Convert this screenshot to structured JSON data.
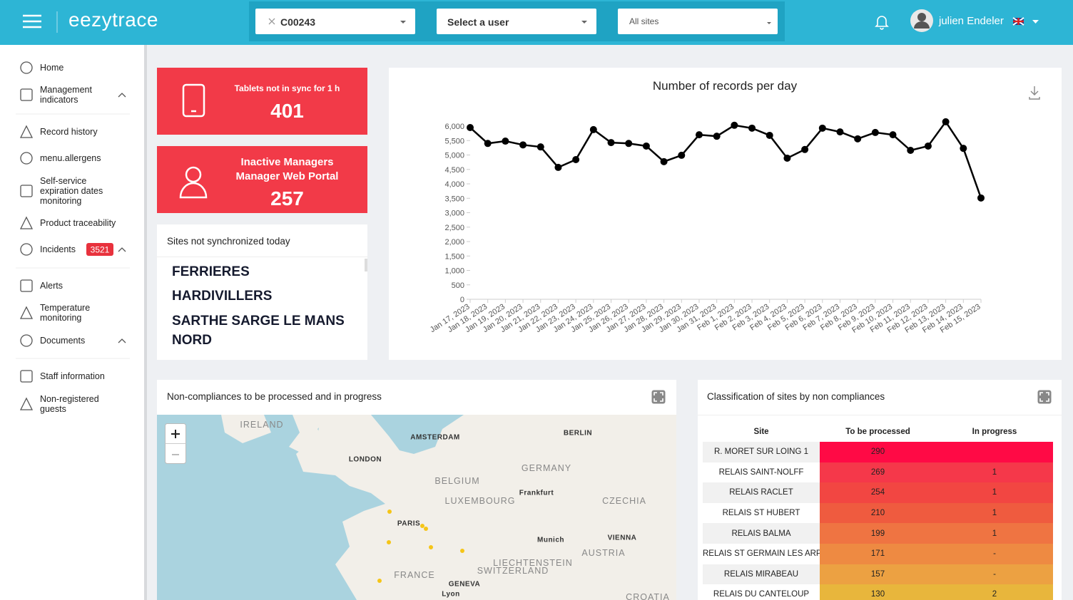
{
  "header": {
    "brand": "eezytrace",
    "company_select": "C00243",
    "user_select": "Select a user",
    "site_select": "All sites",
    "user_name": "julien Endeler"
  },
  "sidebar": {
    "items": [
      {
        "label": "Home"
      },
      {
        "label": "Management indicators"
      },
      {
        "label": "Record history"
      },
      {
        "label": "menu.allergens"
      },
      {
        "label": "Self-service expiration dates monitoring"
      },
      {
        "label": "Product traceability"
      },
      {
        "label": "Incidents",
        "badge": 3521
      },
      {
        "label": "Alerts"
      },
      {
        "label": "Temperature monitoring"
      },
      {
        "label": "Documents"
      },
      {
        "label": "Staff information"
      },
      {
        "label": "Non-registered guests"
      }
    ]
  },
  "cards": [
    {
      "lines": [
        "Tablets not in sync for 1 h"
      ],
      "value": 401
    },
    {
      "lines": [
        "Inactive Managers",
        "Manager Web Portal"
      ],
      "value": 257
    }
  ],
  "sites_panel": {
    "title": "Sites not synchronized today",
    "sites": [
      "FERRIERES",
      "HARDIVILLERS",
      "SARTHE SARGE LE MANS",
      "NORD"
    ]
  },
  "chart_data": {
    "type": "line",
    "title": "Number of records per day",
    "categories": [
      "Jan 17, 2023",
      "Jan 18, 2023",
      "Jan 19, 2023",
      "Jan 20, 2023",
      "Jan 21, 2023",
      "Jan 22, 2023",
      "Jan 23, 2023",
      "Jan 24, 2023",
      "Jan 25, 2023",
      "Jan 26, 2023",
      "Jan 27, 2023",
      "Jan 28, 2023",
      "Jan 29, 2023",
      "Jan 30, 2023",
      "Jan 31, 2023",
      "Feb 1, 2023",
      "Feb 2, 2023",
      "Feb 3, 2023",
      "Feb 4, 2023",
      "Feb 5, 2023",
      "Feb 6, 2023",
      "Feb 7, 2023",
      "Feb 8, 2023",
      "Feb 9, 2023",
      "Feb 10, 2023",
      "Feb 11, 2023",
      "Feb 12, 2023",
      "Feb 13, 2023",
      "Feb 14, 2023",
      "Feb 15, 2023"
    ],
    "values": [
      5950,
      5400,
      5480,
      5350,
      5280,
      4570,
      4840,
      5880,
      5430,
      5400,
      5310,
      4770,
      4990,
      5700,
      5650,
      6030,
      5930,
      5680,
      4890,
      5190,
      5930,
      5800,
      5560,
      5780,
      5700,
      5160,
      5310,
      6150,
      5230,
      3510
    ],
    "color": "#000000",
    "ylim": [
      0,
      6000
    ],
    "yticks": [
      0,
      500,
      {
        "value": 1000,
        "label": "1,000"
      },
      {
        "value": 1500,
        "label": "1,500"
      },
      {
        "value": 2000,
        "label": "2,000"
      },
      {
        "value": 2500,
        "label": "2,500"
      },
      {
        "value": 3000,
        "label": "3,000"
      },
      {
        "value": 3500,
        "label": "3,500"
      },
      {
        "value": 4000,
        "label": "4,000"
      },
      {
        "value": 4500,
        "label": "4,500"
      },
      {
        "value": 5000,
        "label": "5,000"
      },
      {
        "value": 5500,
        "label": "5,500"
      },
      {
        "value": 6000,
        "label": "6,000"
      }
    ],
    "grid": false
  },
  "map_panel": {
    "title": "Non-compliances to be processed and in progress",
    "labels": [
      "IRELAND",
      "AMSTERDAM",
      "BERLIN",
      "LONDON",
      "GERMANY",
      "BELGIUM",
      "LUXEMBOURG",
      "Frankfurt",
      "CZECHIA",
      "PARIS",
      "Munich",
      "VIENNA",
      "AUSTRIA",
      "LIECHTENSTEIN",
      "SWITZERLAND",
      "FRANCE",
      "GENEVA",
      "Lyon",
      "CROATIA"
    ]
  },
  "table_panel": {
    "title": "Classification of sites by non compliances",
    "columns": [
      "Site",
      "To be processed",
      "In progress"
    ],
    "rows": [
      {
        "site": "R. MORET SUR LOING 1",
        "to_be_processed": 290,
        "in_progress": null,
        "color": "#ff0a45"
      },
      {
        "site": "RELAIS SAINT-NOLFF",
        "to_be_processed": 269,
        "in_progress": 1,
        "color": "#f5384a"
      },
      {
        "site": "RELAIS RACLET",
        "to_be_processed": 254,
        "in_progress": 1,
        "color": "#f24642"
      },
      {
        "site": "RELAIS ST HUBERT",
        "to_be_processed": 210,
        "in_progress": 1,
        "color": "#ef5b3f"
      },
      {
        "site": "RELAIS BALMA",
        "to_be_processed": 199,
        "in_progress": 1,
        "color": "#ef7442"
      },
      {
        "site": "RELAIS ST GERMAIN LES ARP",
        "to_be_processed": 171,
        "in_progress": "-",
        "color": "#ee8a42"
      },
      {
        "site": "RELAIS MIRABEAU",
        "to_be_processed": 157,
        "in_progress": "-",
        "color": "#eca142"
      },
      {
        "site": "RELAIS DU CANTELOUP",
        "to_be_processed": 130,
        "in_progress": 2,
        "color": "#e8b63c"
      }
    ]
  }
}
